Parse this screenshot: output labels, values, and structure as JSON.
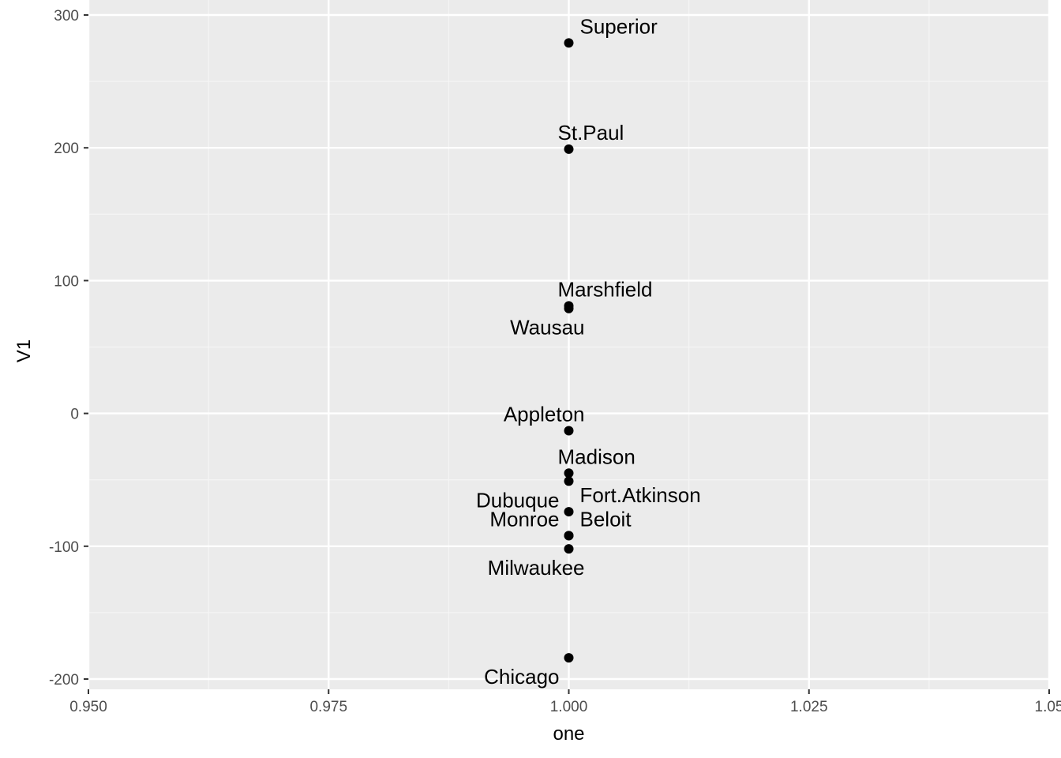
{
  "chart_data": {
    "type": "scatter",
    "title": "",
    "xlabel": "one",
    "ylabel": "V1",
    "xlim": [
      0.95,
      1.05
    ],
    "ylim": [
      -205,
      300
    ],
    "x_ticks": [
      0.95,
      0.975,
      1.0,
      1.025,
      1.05
    ],
    "x_tick_labels": [
      "0.950",
      "0.975",
      "1.000",
      "1.025",
      "1.05"
    ],
    "y_ticks": [
      -200,
      -100,
      0,
      100,
      200,
      300
    ],
    "y_tick_labels": [
      "-200",
      "-100",
      "0",
      "100",
      "200",
      "300"
    ],
    "grid": true,
    "colors": {
      "panel_background": "#ebebeb",
      "grid_major": "#ffffff",
      "grid_minor": "#f5f5f5",
      "point": "#000000",
      "tick_text": "#4d4d4d"
    },
    "points": [
      {
        "label": "Superior",
        "x": 1.0,
        "y": 279,
        "label_side": "above-right"
      },
      {
        "label": "St.Paul",
        "x": 1.0,
        "y": 199,
        "label_side": "above-right"
      },
      {
        "label": "Marshfield",
        "x": 1.0,
        "y": 81,
        "label_side": "above-right"
      },
      {
        "label": "Wausau",
        "x": 1.0,
        "y": 79,
        "label_side": "below-left"
      },
      {
        "label": "Appleton",
        "x": 1.0,
        "y": -13,
        "label_side": "above-left"
      },
      {
        "label": "Madison",
        "x": 1.0,
        "y": -45,
        "label_side": "above-right"
      },
      {
        "label": "Dubuque",
        "x": 1.0,
        "y": -51,
        "label_side": "below-left"
      },
      {
        "label": "Fort.Atkinson",
        "x": 1.0,
        "y": -74,
        "label_side": "above-right"
      },
      {
        "label": "Monroe",
        "x": 1.0,
        "y": -92,
        "label_side": "above-left"
      },
      {
        "label": "Beloit",
        "x": 1.0,
        "y": -92,
        "label_side": "above-right"
      },
      {
        "label": "Milwaukee",
        "x": 1.0,
        "y": -102,
        "label_side": "below-left"
      },
      {
        "label": "Chicago",
        "x": 1.0,
        "y": -184,
        "label_side": "below-left"
      }
    ]
  }
}
